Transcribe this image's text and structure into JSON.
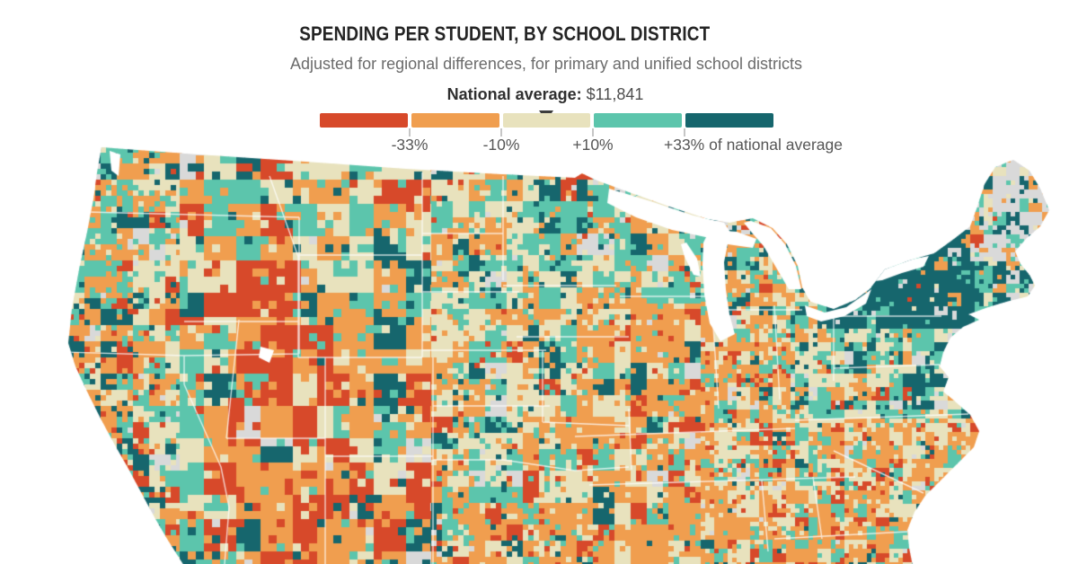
{
  "title": "SPENDING PER STUDENT, BY SCHOOL DISTRICT",
  "subtitle": "Adjusted for regional differences, for primary and unified school districts",
  "legend": {
    "average_label": "National average:",
    "average_value": "$11,841",
    "tick_labels": [
      "-33%",
      "-10%",
      "+10%",
      "+33% of national average"
    ],
    "bucket_colors": [
      "#d7492a",
      "#f09e4f",
      "#e8e2bd",
      "#5cc5ac",
      "#16666d"
    ],
    "no_data_color": "#d9d9d9",
    "marker_color": "#3c3c3c"
  },
  "map": {
    "region": "Contiguous United States",
    "unit": "school district",
    "border_color": "#ffffff",
    "water_color": "#ffffff"
  }
}
